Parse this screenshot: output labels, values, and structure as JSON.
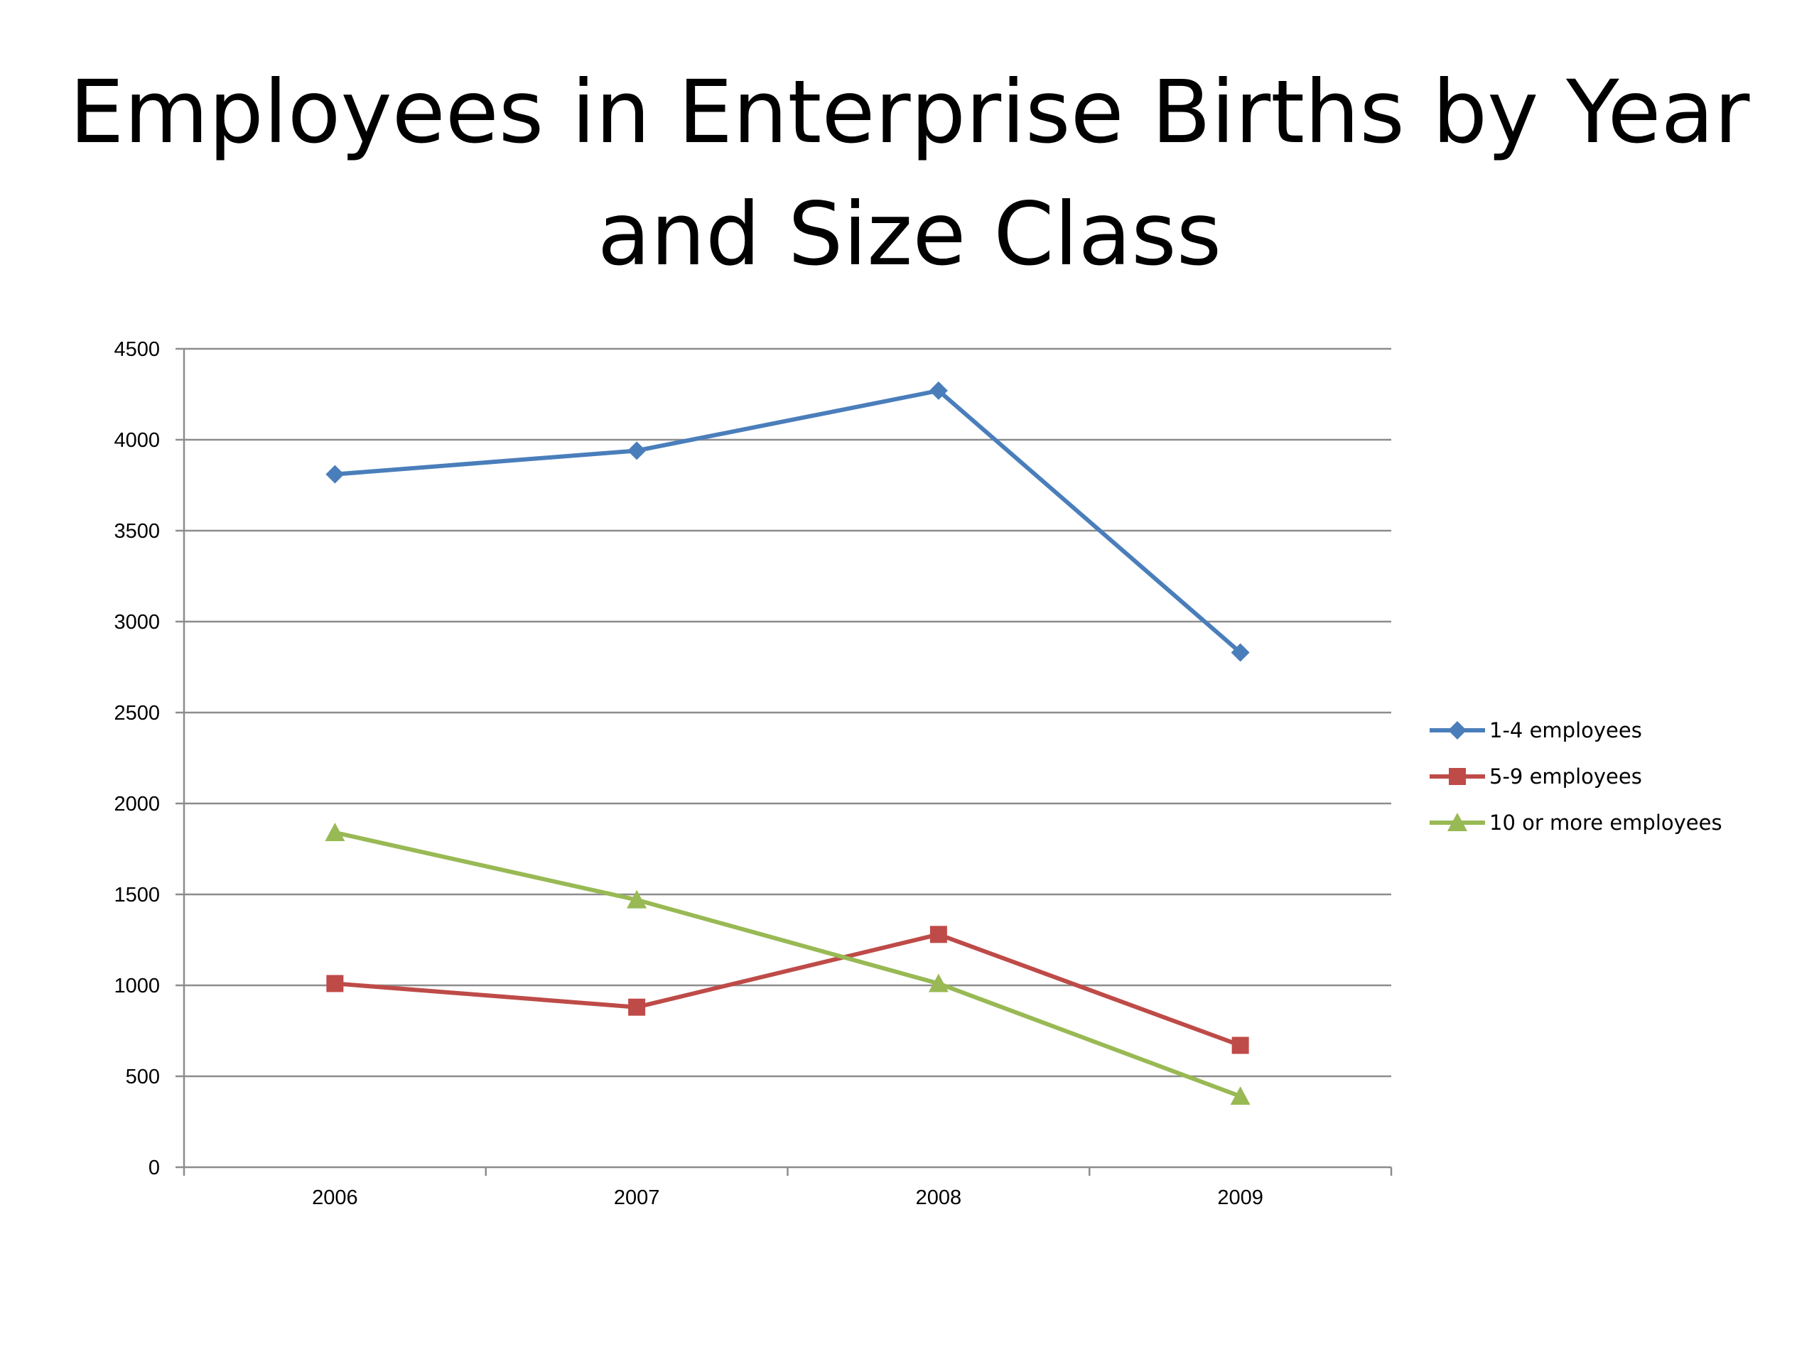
{
  "chart_data": {
    "type": "line",
    "title_lines": [
      "Employees in Enterprise Births by Year",
      "and Size Class"
    ],
    "categories": [
      "2006",
      "2007",
      "2008",
      "2009"
    ],
    "ylim": [
      0,
      4500
    ],
    "yticks": [
      0,
      500,
      1000,
      1500,
      2000,
      2500,
      3000,
      3500,
      4000,
      4500
    ],
    "grid": true,
    "legend_position": "right",
    "series": [
      {
        "name": "1-4 employees",
        "color": "#4a7ebb",
        "marker": "diamond",
        "values": [
          3810,
          3940,
          4270,
          2830
        ]
      },
      {
        "name": "5-9 employees",
        "color": "#be4b48",
        "marker": "square",
        "values": [
          1010,
          880,
          1280,
          670
        ]
      },
      {
        "name": "10 or more employees",
        "color": "#98b954",
        "marker": "triangle",
        "values": [
          1840,
          1470,
          1010,
          390
        ]
      }
    ]
  }
}
